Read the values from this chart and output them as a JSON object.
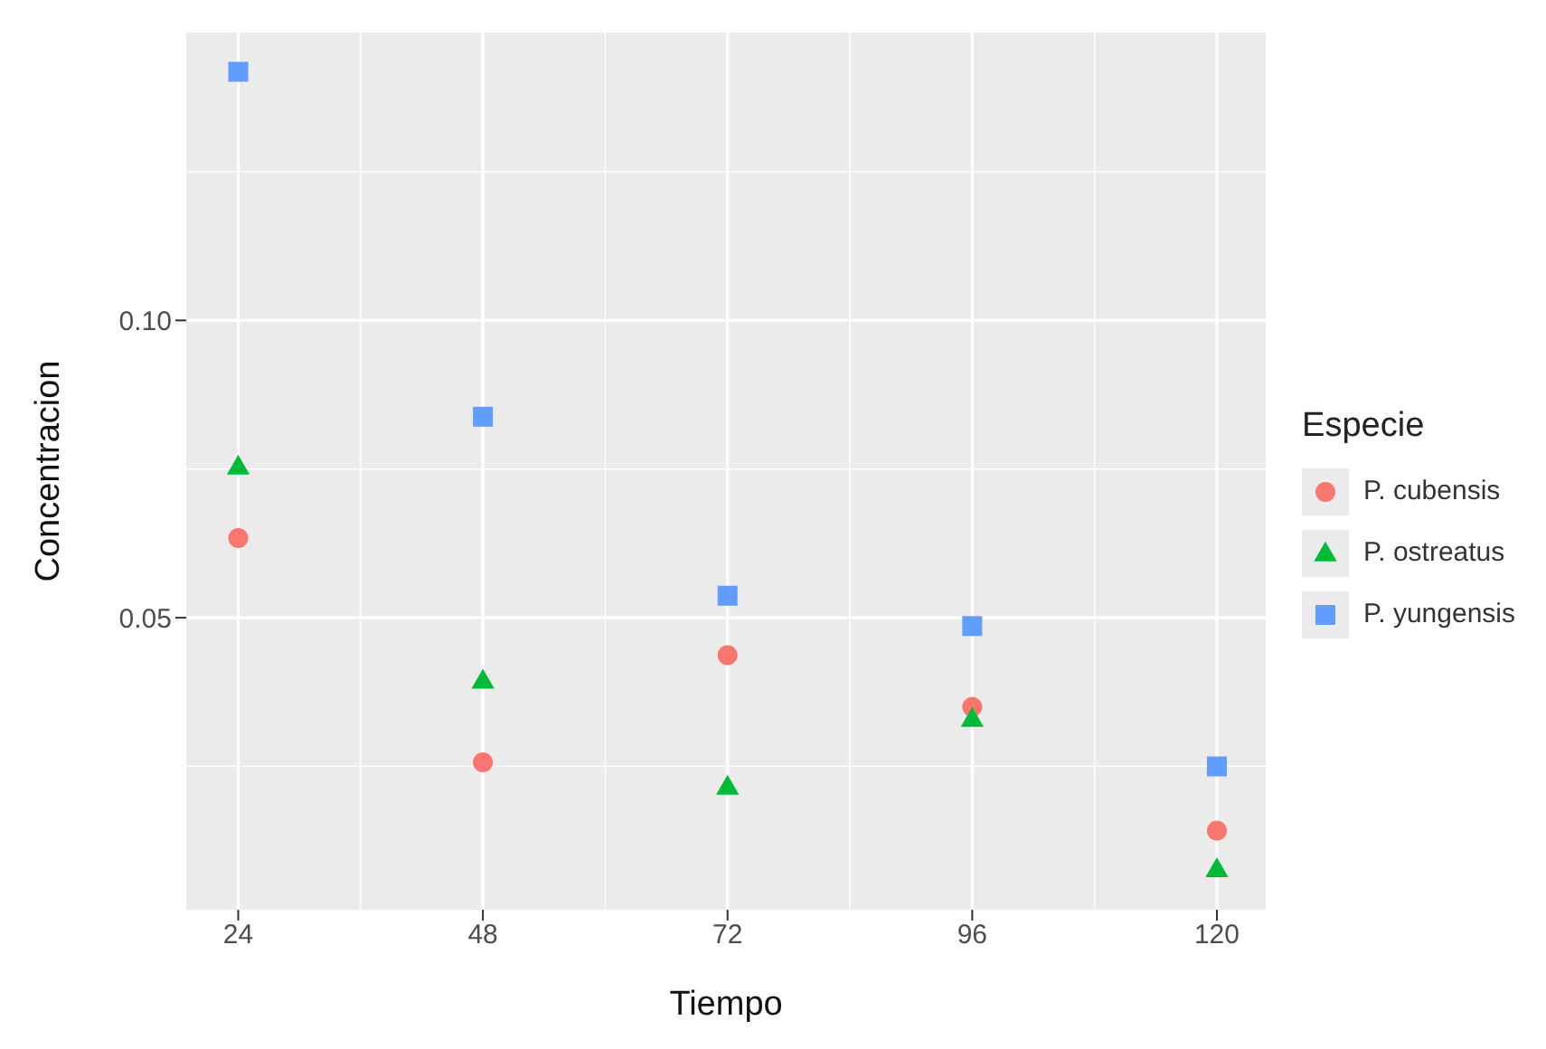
{
  "chart_data": {
    "type": "scatter",
    "xlabel": "Tiempo",
    "ylabel": "Concentracion",
    "legend_title": "Especie",
    "legend": "right",
    "grid": true,
    "x": [
      24,
      48,
      72,
      96,
      120
    ],
    "xlim": [
      18.9,
      124.8
    ],
    "xticks": [
      24,
      48,
      72,
      96,
      120
    ],
    "ylim": [
      0.0009,
      0.1484
    ],
    "yticks": [
      0.05,
      {
        "value": 0.1,
        "label": "0.10"
      }
    ],
    "series": [
      {
        "name": "P. cubensis",
        "color": "#f8766d",
        "marker": "circle",
        "values": [
          0.0634,
          0.0257,
          0.0437,
          0.035,
          0.0142
        ]
      },
      {
        "name": "P. ostreatus",
        "color": "#00ba38",
        "marker": "triangle",
        "values": [
          0.0754,
          0.0394,
          0.0216,
          0.033,
          0.0077
        ]
      },
      {
        "name": "P. yungensis",
        "color": "#619cff",
        "marker": "square",
        "values": [
          0.1418,
          0.0838,
          0.0537,
          0.0486,
          0.025
        ]
      }
    ]
  }
}
